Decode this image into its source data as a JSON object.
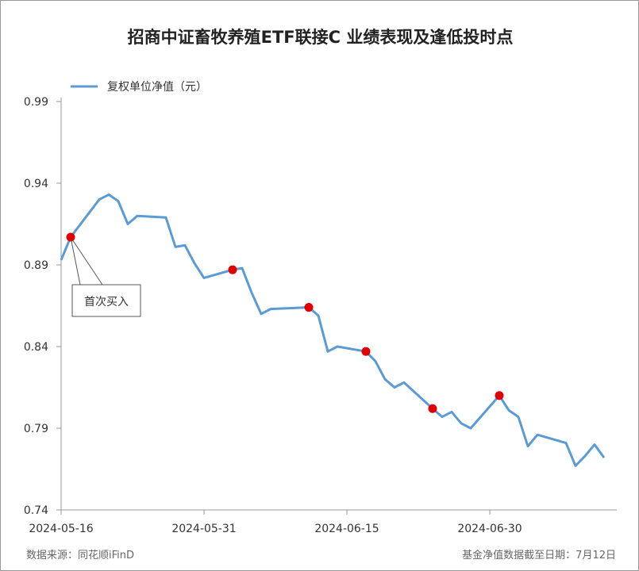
{
  "colors": {
    "line": "#5b9bd5",
    "marker": "#e00000",
    "axis": "#999999"
  },
  "source": "数据来源：同花顺iFinD",
  "as_of": "基金净值数据截至日期：7月12日",
  "chart_data": {
    "type": "line",
    "title": "招商中证畜牧养殖ETF联接C 业绩表现及逢低投时点",
    "legend": "复权单位净值（元）",
    "legend_position": "top-left",
    "ylim": [
      0.74,
      0.99
    ],
    "yticks": [
      "0.74",
      "0.79",
      "0.84",
      "0.89",
      "0.94",
      "0.99"
    ],
    "xticks": [
      "2024-05-16",
      "2024-05-31",
      "2024-06-15",
      "2024-06-30"
    ],
    "x_start": "2024-05-16",
    "grid": false,
    "series": [
      {
        "name": "复权单位净值（元）",
        "points": [
          [
            "2024-05-16",
            0.893
          ],
          [
            "2024-05-17",
            0.907
          ],
          [
            "2024-05-20",
            0.93
          ],
          [
            "2024-05-21",
            0.933
          ],
          [
            "2024-05-22",
            0.929
          ],
          [
            "2024-05-23",
            0.915
          ],
          [
            "2024-05-24",
            0.92
          ],
          [
            "2024-05-27",
            0.919
          ],
          [
            "2024-05-28",
            0.901
          ],
          [
            "2024-05-29",
            0.902
          ],
          [
            "2024-05-30",
            0.891
          ],
          [
            "2024-05-31",
            0.882
          ],
          [
            "2024-06-03",
            0.887
          ],
          [
            "2024-06-04",
            0.888
          ],
          [
            "2024-06-05",
            0.873
          ],
          [
            "2024-06-06",
            0.86
          ],
          [
            "2024-06-07",
            0.863
          ],
          [
            "2024-06-11",
            0.864
          ],
          [
            "2024-06-12",
            0.859
          ],
          [
            "2024-06-13",
            0.837
          ],
          [
            "2024-06-14",
            0.84
          ],
          [
            "2024-06-17",
            0.837
          ],
          [
            "2024-06-18",
            0.831
          ],
          [
            "2024-06-19",
            0.82
          ],
          [
            "2024-06-20",
            0.815
          ],
          [
            "2024-06-21",
            0.818
          ],
          [
            "2024-06-24",
            0.802
          ],
          [
            "2024-06-25",
            0.797
          ],
          [
            "2024-06-26",
            0.8
          ],
          [
            "2024-06-27",
            0.793
          ],
          [
            "2024-06-28",
            0.79
          ],
          [
            "2024-07-01",
            0.81
          ],
          [
            "2024-07-02",
            0.801
          ],
          [
            "2024-07-03",
            0.797
          ],
          [
            "2024-07-04",
            0.779
          ],
          [
            "2024-07-05",
            0.786
          ],
          [
            "2024-07-08",
            0.781
          ],
          [
            "2024-07-09",
            0.767
          ],
          [
            "2024-07-10",
            0.773
          ],
          [
            "2024-07-11",
            0.78
          ],
          [
            "2024-07-12",
            0.772
          ]
        ]
      }
    ],
    "buy_points": [
      "2024-05-17",
      "2024-06-03",
      "2024-06-11",
      "2024-06-17",
      "2024-06-24",
      "2024-07-01"
    ],
    "annotation": {
      "text": "首次买入",
      "date": "2024-05-17"
    }
  }
}
